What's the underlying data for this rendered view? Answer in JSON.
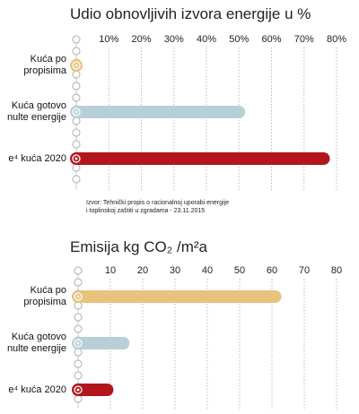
{
  "chart_data": [
    {
      "type": "bar",
      "orientation": "horizontal",
      "title": "Udio obnovljivih izvora energije u %",
      "categories": [
        "Kuća po propisima",
        "Kuća gotovo nulte energije",
        "e⁴ kuća 2020"
      ],
      "values": [
        0,
        50,
        76
      ],
      "colors": [
        "#e9c27e",
        "#b9cfd8",
        "#b3151d"
      ],
      "xlim": [
        0,
        80
      ],
      "xticks": [
        {
          "value": 10,
          "label": "10%"
        },
        {
          "value": 20,
          "label": "20%"
        },
        {
          "value": 30,
          "label": "30%"
        },
        {
          "value": 40,
          "label": "40%"
        },
        {
          "value": 50,
          "label": "50%"
        },
        {
          "value": 60,
          "label": "60%"
        },
        {
          "value": 70,
          "label": "70%"
        },
        {
          "value": 80,
          "label": "80%"
        }
      ],
      "grid": true,
      "source": [
        "Izvor: Tehnički propis o racionalnoj uporabi energije",
        "i toplinskoj zaštiti u zgradama - 23.11.2015"
      ]
    },
    {
      "type": "bar",
      "orientation": "horizontal",
      "title": "Emisija kg CO₂ /m²a",
      "categories": [
        "Kuća po propisima",
        "Kuća gotovo nulte energije",
        "e⁴ kuća 2020"
      ],
      "values": [
        61,
        14,
        9
      ],
      "colors": [
        "#e9c27e",
        "#b9cfd8",
        "#b3151d"
      ],
      "xlim": [
        0,
        80
      ],
      "xticks": [
        10,
        20,
        30,
        40,
        50,
        60,
        70,
        80
      ],
      "grid": true
    }
  ]
}
